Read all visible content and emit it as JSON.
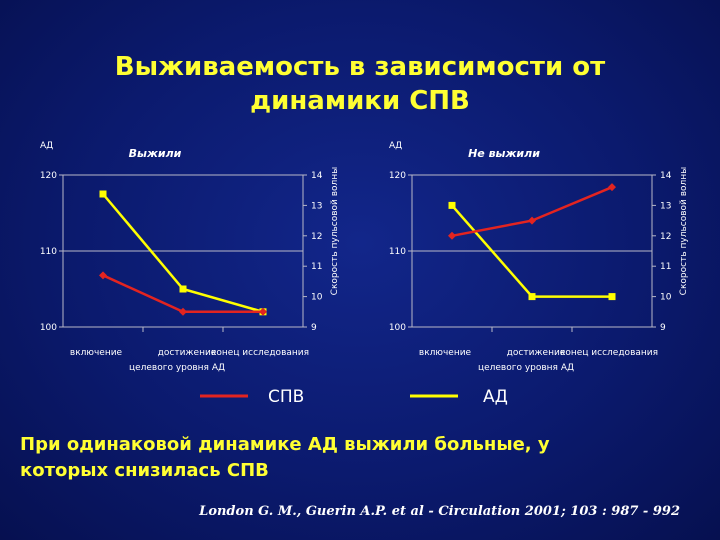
{
  "slide": {
    "title_lines": [
      "Выживаемость в зависимости от",
      "динамики СПВ"
    ],
    "conclusion_lines": [
      "При одинаковой динамике АД выжили больные, у",
      "которых снизилась СПВ"
    ],
    "citation": "London G. M., Guerin A.P. et al - Circulation 2001; 103 : 987 - 992"
  },
  "legend": {
    "items": [
      {
        "label": "СПВ",
        "color": "#e32420"
      },
      {
        "label": "АД",
        "color": "#ffff00"
      }
    ]
  },
  "chart_data": [
    {
      "type": "line",
      "title": "Выжили",
      "categories": [
        "включение",
        "достижение",
        "конец исследования"
      ],
      "xlabel": "целевого уровня АД",
      "ylabel_left": "АД",
      "ylabel_right": "Скорость пульсовой волны",
      "ylim_left": [
        100,
        120
      ],
      "yticks_left": [
        100,
        110,
        120
      ],
      "ylim_right": [
        9,
        14
      ],
      "yticks_right": [
        9,
        10,
        11,
        12,
        13,
        14
      ],
      "grid": "horizontal",
      "series": [
        {
          "name": "АД",
          "axis": "left",
          "color": "#ffff00",
          "marker": "square",
          "values": [
            117.5,
            105,
            102
          ]
        },
        {
          "name": "СПВ",
          "axis": "right",
          "color": "#e32420",
          "marker": "diamond",
          "values": [
            10.7,
            9.5,
            9.5
          ]
        }
      ]
    },
    {
      "type": "line",
      "title": "Не выжили",
      "categories": [
        "включение",
        "достижение",
        "конец исследования"
      ],
      "xlabel": "целевого уровня АД",
      "ylabel_left": "АД",
      "ylabel_right": "Скорость пульсовой волны",
      "ylim_left": [
        100,
        120
      ],
      "yticks_left": [
        100,
        110,
        120
      ],
      "ylim_right": [
        9,
        14
      ],
      "yticks_right": [
        9,
        10,
        11,
        12,
        13,
        14
      ],
      "grid": "horizontal",
      "series": [
        {
          "name": "АД",
          "axis": "left",
          "color": "#ffff00",
          "marker": "square",
          "values": [
            116,
            104,
            104
          ]
        },
        {
          "name": "СПВ",
          "axis": "right",
          "color": "#e32420",
          "marker": "diamond",
          "values": [
            12,
            12.5,
            13.6
          ]
        }
      ]
    }
  ]
}
